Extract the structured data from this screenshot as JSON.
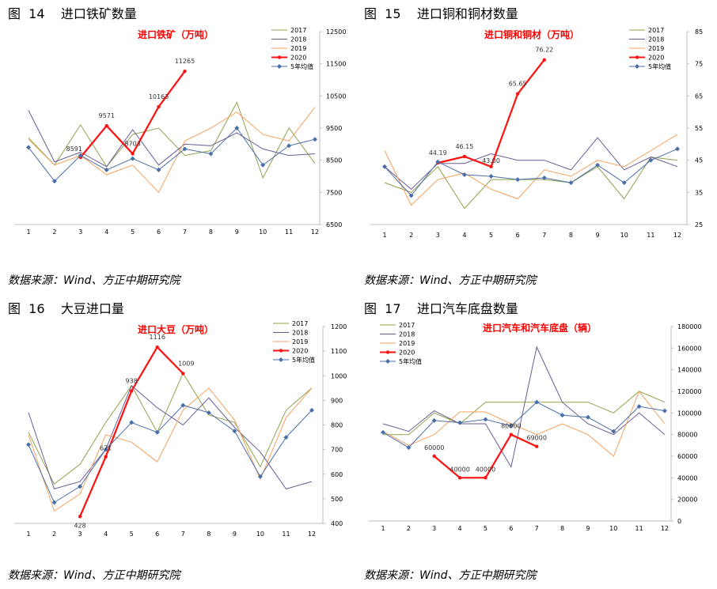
{
  "charts": [
    {
      "figure_label": "图  14    进口铁矿数量",
      "source": "数据来源：Wind、方正中期研究院",
      "chart_data": {
        "type": "line",
        "title": "进口铁矿（万吨）",
        "categories": [
          "1",
          "2",
          "3",
          "4",
          "5",
          "6",
          "7",
          "8",
          "9",
          "10",
          "11",
          "12"
        ],
        "y_ticks": [
          "12500",
          "11500",
          "10500",
          "9500",
          "8500",
          "7500",
          "6500"
        ],
        "ylim": [
          6500,
          12500
        ],
        "y_axis_side": "right",
        "legend_position": "top-right",
        "series": [
          {
            "name": "2017",
            "color": "#8fa34b",
            "values": [
              9200,
              8350,
              9600,
              8300,
              9300,
              9500,
              8650,
              8800,
              10300,
              7950,
              9500,
              8400
            ]
          },
          {
            "name": "2018",
            "color": "#6b5b95",
            "values": [
              10050,
              8450,
              8750,
              8300,
              9450,
              8350,
              9000,
              8950,
              9350,
              8850,
              8650,
              8700
            ]
          },
          {
            "name": "2019",
            "color": "#f4a15d",
            "values": [
              9150,
              8350,
              8650,
              8050,
              8350,
              7500,
              9100,
              9500,
              10000,
              9300,
              9100,
              10150
            ]
          },
          {
            "name": "2020",
            "color": "#ff1010",
            "values": [
              null,
              null,
              8591,
              9571,
              8703,
              10163,
              11265,
              null,
              null,
              null,
              null,
              null
            ],
            "highlight": true
          },
          {
            "name": "5年均值",
            "color": "#4a6fa8",
            "values": [
              8900,
              7850,
              8650,
              8200,
              8550,
              8200,
              8850,
              8700,
              9500,
              8350,
              8950,
              9150
            ],
            "markers": "diamond"
          }
        ],
        "data_labels": [
          {
            "series": "2020",
            "x": "3",
            "text": "8591"
          },
          {
            "series": "2020",
            "x": "4",
            "text": "9571"
          },
          {
            "series": "2020",
            "x": "5",
            "text": "8703"
          },
          {
            "series": "2020",
            "x": "6",
            "text": "10163"
          },
          {
            "series": "2020",
            "x": "7",
            "text": "11265"
          }
        ]
      }
    },
    {
      "figure_label": "图  15    进口铜和铜材数量",
      "source": "数据来源：Wind、方正中期研究院",
      "chart_data": {
        "type": "line",
        "title": "进口铜和铜材（万吨）",
        "categories": [
          "1",
          "2",
          "3",
          "4",
          "5",
          "6",
          "7",
          "8",
          "9",
          "10",
          "11",
          "12"
        ],
        "y_ticks": [
          "85",
          "75",
          "65",
          "55",
          "45",
          "35",
          "25"
        ],
        "ylim": [
          25,
          85
        ],
        "y_axis_side": "right",
        "legend_position": "top-right",
        "series": [
          {
            "name": "2017",
            "color": "#8fa34b",
            "values": [
              38,
              35,
              43,
              30,
              39,
              39,
              39,
              38,
              43,
              33,
              46,
              45
            ]
          },
          {
            "name": "2018",
            "color": "#6b5b95",
            "values": [
              43,
              36,
              44,
              44,
              47,
              45,
              45,
              42,
              52,
              42,
              46,
              43
            ]
          },
          {
            "name": "2019",
            "color": "#f4a15d",
            "values": [
              48,
              31,
              39,
              41,
              36,
              33,
              42,
              40,
              45,
              43,
              48,
              53
            ]
          },
          {
            "name": "2020",
            "color": "#ff1010",
            "values": [
              null,
              null,
              44.19,
              46.15,
              43.0,
              65.65,
              76.22,
              null,
              null,
              null,
              null,
              null
            ],
            "highlight": true
          },
          {
            "name": "5年均值",
            "color": "#4a6fa8",
            "values": [
              43,
              34,
              44.5,
              40.5,
              40,
              39,
              39.5,
              38,
              43.5,
              38,
              45,
              48.5
            ],
            "markers": "diamond"
          }
        ],
        "data_labels": [
          {
            "series": "2020",
            "x": "3",
            "text": "44.19"
          },
          {
            "series": "2020",
            "x": "4",
            "text": "46.15"
          },
          {
            "series": "2020",
            "x": "5",
            "text": "43.00"
          },
          {
            "series": "2020",
            "x": "6",
            "text": "65.65"
          },
          {
            "series": "2020",
            "x": "7",
            "text": "76.22"
          }
        ]
      }
    },
    {
      "figure_label": "图  16    大豆进口量",
      "source": "数据来源：Wind、方正中期研究院",
      "chart_data": {
        "type": "line",
        "title": "进口大豆（万吨）",
        "categories": [
          "1",
          "2",
          "3",
          "4",
          "5",
          "6",
          "7",
          "8",
          "9",
          "10",
          "11",
          "12"
        ],
        "y_ticks": [
          "1200",
          "1100",
          "1000",
          "900",
          "800",
          "700",
          "600",
          "500",
          "400"
        ],
        "ylim": [
          400,
          1200
        ],
        "y_axis_side": "right",
        "legend_position": "top-right",
        "series": [
          {
            "name": "2017",
            "color": "#8fa34b",
            "values": [
              770,
              560,
              640,
              810,
              960,
              770,
              1010,
              840,
              810,
              630,
              860,
              950
            ]
          },
          {
            "name": "2018",
            "color": "#6b5b95",
            "values": [
              850,
              540,
              570,
              700,
              960,
              870,
              800,
              910,
              790,
              690,
              540,
              570
            ]
          },
          {
            "name": "2019",
            "color": "#f4a15d",
            "values": [
              760,
              450,
              520,
              760,
              730,
              650,
              860,
              950,
              820,
              580,
              830,
              950
            ]
          },
          {
            "name": "2020",
            "color": "#ff1010",
            "values": [
              null,
              null,
              428,
              671,
              938,
              1116,
              1009,
              null,
              null,
              null,
              null,
              null
            ],
            "highlight": true
          },
          {
            "name": "5年均值",
            "color": "#4a6fa8",
            "values": [
              720,
              485,
              550,
              700,
              810,
              770,
              880,
              850,
              775,
              590,
              750,
              860
            ],
            "markers": "diamond"
          }
        ],
        "data_labels": [
          {
            "series": "2020",
            "x": "3",
            "text": "428"
          },
          {
            "series": "2020",
            "x": "4",
            "text": "671"
          },
          {
            "series": "2020",
            "x": "5",
            "text": "938"
          },
          {
            "series": "2020",
            "x": "6",
            "text": "1116"
          },
          {
            "series": "2020",
            "x": "7",
            "text": "1009"
          }
        ]
      }
    },
    {
      "figure_label": "图  17    进口汽车底盘数量",
      "source": "数据来源：Wind、方正中期研究院",
      "chart_data": {
        "type": "line",
        "title": "进口汽车和汽车底盘（辆）",
        "categories": [
          "1",
          "2",
          "3",
          "4",
          "5",
          "6",
          "7",
          "8",
          "9",
          "10",
          "11",
          "12"
        ],
        "y_ticks": [
          "180000",
          "160000",
          "140000",
          "120000",
          "100000",
          "80000",
          "60000",
          "40000",
          "20000",
          "0"
        ],
        "ylim": [
          0,
          180000
        ],
        "y_axis_side": "right",
        "legend_position": "top-left",
        "series": [
          {
            "name": "2017",
            "color": "#8fa34b",
            "values": [
              80000,
              80000,
              100000,
              90000,
              110000,
              110000,
              110000,
              110000,
              110000,
              100000,
              120000,
              110000
            ]
          },
          {
            "name": "2018",
            "color": "#6b5b95",
            "values": [
              90000,
              83000,
              102000,
              90000,
              90000,
              50000,
              161000,
              110000,
              90000,
              80000,
              100000,
              80000
            ]
          },
          {
            "name": "2019",
            "color": "#f4a15d",
            "values": [
              83000,
              70000,
              80000,
              101000,
              101000,
              90000,
              80000,
              90000,
              80000,
              60000,
              120000,
              90000
            ]
          },
          {
            "name": "2020",
            "color": "#ff1010",
            "values": [
              null,
              null,
              60000,
              40000,
              40000,
              80000,
              69000,
              null,
              null,
              null,
              null,
              null
            ],
            "highlight": true
          },
          {
            "name": "5年均值",
            "color": "#4a6fa8",
            "values": [
              82000,
              68000,
              93000,
              91000,
              94000,
              88000,
              110000,
              98000,
              96000,
              83000,
              106000,
              102000
            ],
            "markers": "diamond"
          }
        ],
        "data_labels": [
          {
            "series": "2020",
            "x": "3",
            "text": "60000"
          },
          {
            "series": "2020",
            "x": "4",
            "text": "40000"
          },
          {
            "series": "2020",
            "x": "5",
            "text": "40000"
          },
          {
            "series": "2020",
            "x": "6",
            "text": "80000"
          },
          {
            "series": "2020",
            "x": "7",
            "text": "69000"
          }
        ]
      }
    }
  ]
}
